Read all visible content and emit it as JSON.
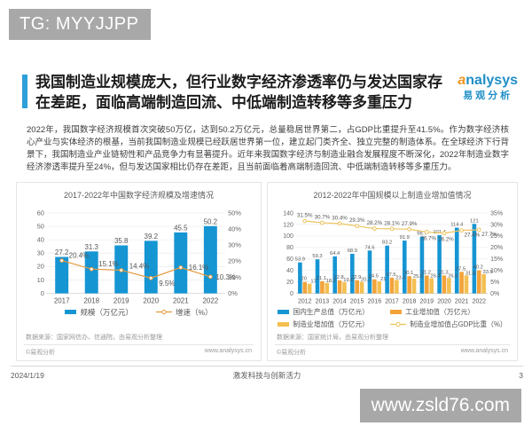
{
  "badges": {
    "tg": "TG: MYYJJPP",
    "url": "www.zsld76.com"
  },
  "logo": {
    "brand_first_letter": "a",
    "brand_rest": "nalysys",
    "brand_cn": "易观分析"
  },
  "colors": {
    "accent_blue": "#2e9fd8",
    "bar_blue": "#1695d3",
    "line_orange": "#e59a3e",
    "bar_orange": "#f2a33a",
    "bar_gold": "#f3c051",
    "line_gold": "#ecc45c",
    "badge_gray": "#a8a8a8"
  },
  "slide": {
    "title": "我国制造业规模庞大，但行业数字经济渗透率仍与发达国家存在差距，面临高端制造回流、中低端制造转移等多重压力",
    "body": "2022年，我国数字经济规模首次突破50万亿，达到50.2万亿元，总量稳居世界第二，占GDP比重提升至41.5%。作为数字经济核心产业与实体经济的根基，当前我国制造业规模已经跃居世界第一位，建立起门类齐全、独立完整的制造体系。在全球经济下行背景下，我国制造业产业链韧性和产品竞争力有显著提升。近年来我国数字经济与制造业融合发展程度不断深化，2022年制造业数字经济渗透率提升至24%，但与发达国家相比仍存在差距，且当前面临着高端制造回流、中低端制造转移等多重压力。",
    "footer": {
      "date": "2024/1/19",
      "motto": "激发科技与创新活力",
      "page": "3"
    }
  },
  "chart_data": [
    {
      "type": "bar+line",
      "title": "2017-2022年中国数字经济规模及增速情况",
      "categories": [
        "2017",
        "2018",
        "2019",
        "2020",
        "2021",
        "2022"
      ],
      "series": [
        {
          "name": "规模（万亿元）",
          "type": "bar",
          "axis": "left",
          "color": "#1695d3",
          "values": [
            27.2,
            31.3,
            35.8,
            39.2,
            45.5,
            50.2
          ]
        },
        {
          "name": "增速（%）",
          "type": "line",
          "axis": "right",
          "color": "#e59a3e",
          "values": [
            20.4,
            15.1,
            14.4,
            9.5,
            16.1,
            10.3
          ],
          "label_suffix": "%"
        }
      ],
      "left_axis": {
        "min": 0,
        "max": 60,
        "step": 10
      },
      "right_axis": {
        "min": 0,
        "max": 50,
        "step": 10,
        "suffix": "%"
      },
      "grid": true,
      "legend_position": "bottom",
      "source": "数据来源：国家网信办、信通院，由易观分析整理",
      "copyright": "©易观分析",
      "website": "www.analysys.cn"
    },
    {
      "type": "bar+line",
      "title": "2012-2022年中国规模以上制造业增加值情况",
      "categories": [
        "2012",
        "2013",
        "2014",
        "2015",
        "2016",
        "2017",
        "2018",
        "2019",
        "2020",
        "2021",
        "2022"
      ],
      "series": [
        {
          "name": "国内生产总值（万亿元）",
          "type": "bar",
          "axis": "left",
          "color": "#1695d3",
          "values": [
            53.9,
            59.3,
            64.4,
            68.9,
            74.6,
            83.2,
            91.9,
            98.7,
            101.4,
            114.4,
            121
          ]
        },
        {
          "name": "工业增加值（万亿元）",
          "type": "bar",
          "axis": "left",
          "color": "#f2a33a",
          "values": [
            20,
            21.1,
            22.8,
            22.9,
            24.5,
            27.5,
            30.1,
            31.2,
            31.3,
            37.5,
            40.2
          ]
        },
        {
          "name": "制造业增加值（万亿元）",
          "type": "bar",
          "axis": "left",
          "color": "#f3c051",
          "values": [
            17,
            18.2,
            19.6,
            20.2,
            21,
            23.4,
            25.6,
            26.4,
            26.6,
            31.4,
            33.5
          ]
        },
        {
          "name": "制造业增加值占GDP比重（%）",
          "type": "line",
          "axis": "right",
          "color": "#ecc45c",
          "values": [
            31.5,
            30.7,
            30.4,
            29.3,
            28.2,
            28.1,
            27.9,
            26.7,
            26.2,
            27.4,
            27.7
          ],
          "label_suffix": "%"
        }
      ],
      "left_axis": {
        "min": 0,
        "max": 140,
        "step": 20
      },
      "right_axis": {
        "min": 0,
        "max": 35,
        "step": 5,
        "suffix": "%"
      },
      "grid": true,
      "legend_position": "bottom",
      "source": "数据来源：国家统计局，由易观分析整理",
      "copyright": "©易观分析",
      "website": "www.analysys.cn"
    }
  ]
}
